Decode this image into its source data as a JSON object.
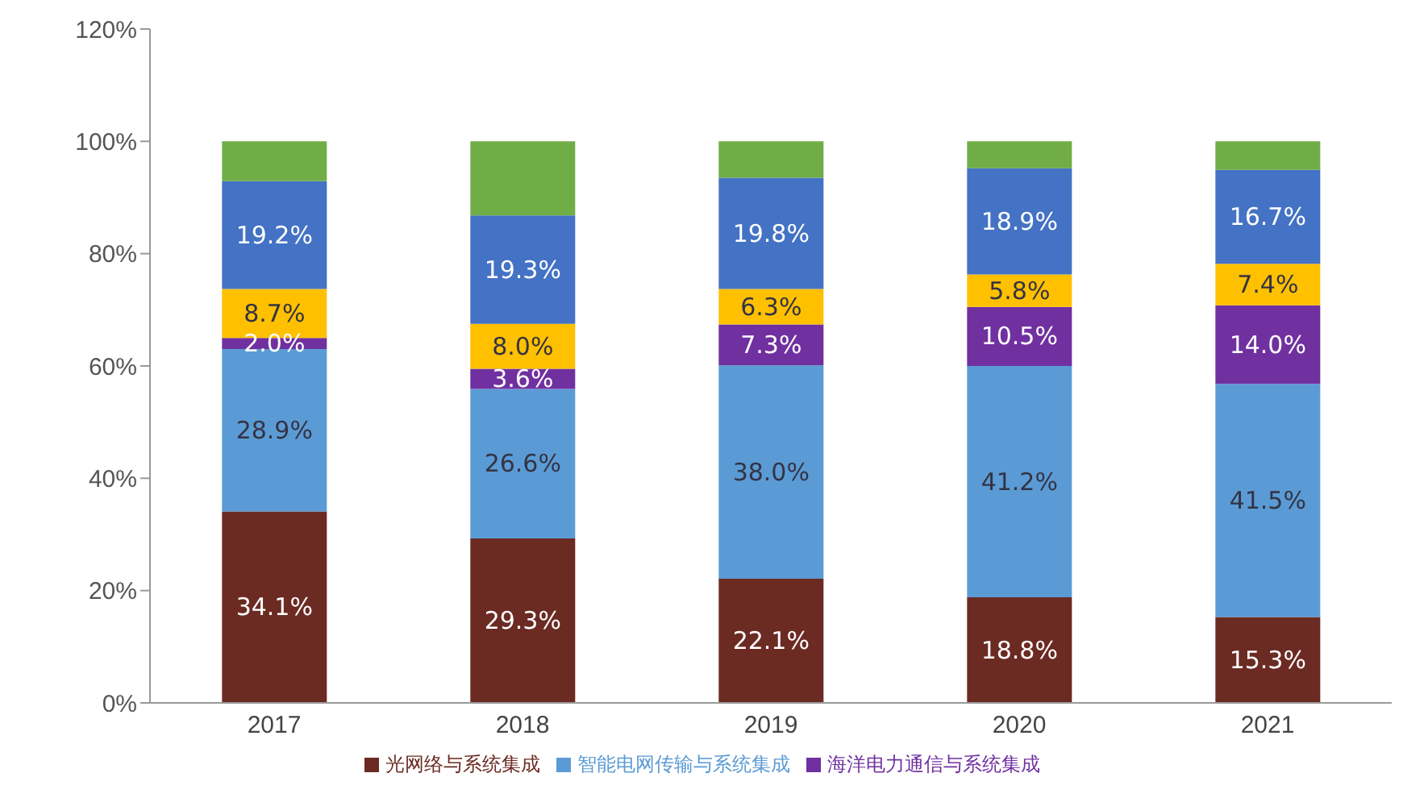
{
  "chart_data": {
    "type": "bar",
    "stacked": true,
    "categories": [
      "2017",
      "2018",
      "2019",
      "2020",
      "2021"
    ],
    "series": [
      {
        "name": "光网络与系统集成",
        "color": "#6b2a22",
        "values": [
          34.1,
          29.3,
          22.1,
          18.8,
          15.3
        ],
        "value_labels": [
          "34.1%",
          "29.3%",
          "22.1%",
          "18.8%",
          "15.3%"
        ]
      },
      {
        "name": "智能电网传输与系统集成",
        "color": "#5b9bd5",
        "values": [
          28.9,
          26.6,
          38.0,
          41.2,
          41.5
        ],
        "value_labels": [
          "28.9%",
          "26.6%",
          "38.0%",
          "41.2%",
          "41.5%"
        ]
      },
      {
        "name": "海洋电力通信与系统集成",
        "color": "#7030a0",
        "values": [
          2.0,
          3.6,
          7.3,
          10.5,
          14.0
        ],
        "value_labels": [
          "2.0%",
          "3.6%",
          "7.3%",
          "10.5%",
          "14.0%"
        ]
      },
      {
        "color": "#ffc000",
        "values": [
          8.7,
          8.0,
          6.3,
          5.8,
          7.4
        ],
        "value_labels": [
          "8.7%",
          "8.0%",
          "6.3%",
          "5.8%",
          "7.4%"
        ]
      },
      {
        "color": "#4472c4",
        "values": [
          19.2,
          19.3,
          19.8,
          18.9,
          16.7
        ],
        "value_labels": [
          "19.2%",
          "19.3%",
          "19.8%",
          "18.9%",
          "16.7%"
        ]
      },
      {
        "color": "#70ad47",
        "values": [
          7.1,
          13.2,
          6.5,
          4.8,
          5.1
        ]
      }
    ],
    "ylim": [
      0,
      120
    ],
    "yticks": [
      {
        "value": 0,
        "label": "0%"
      },
      {
        "value": 20,
        "label": "20%"
      },
      {
        "value": 40,
        "label": "40%"
      },
      {
        "value": 60,
        "label": "60%"
      },
      {
        "value": 80,
        "label": "80%"
      },
      {
        "value": 100,
        "label": "100%"
      },
      {
        "value": 120,
        "label": "120%"
      }
    ],
    "grid": false,
    "legend": "bottom"
  }
}
